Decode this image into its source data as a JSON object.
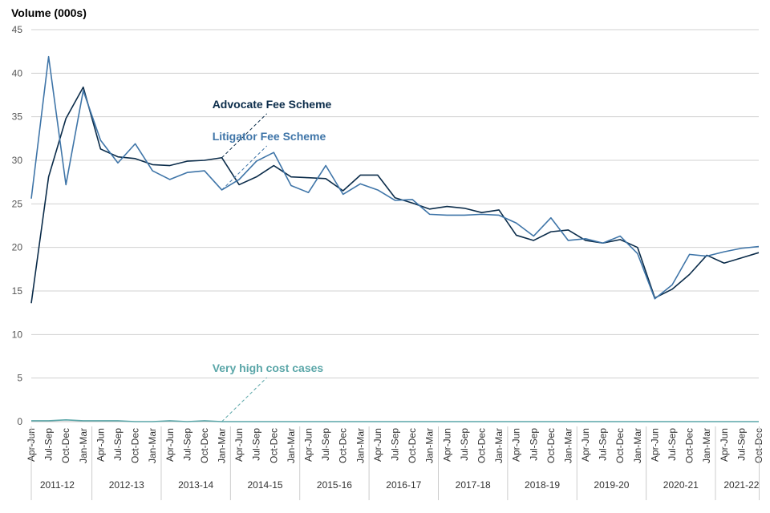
{
  "chart_data": {
    "type": "line",
    "ylabel": "Volume (000s)",
    "ylim": [
      0,
      45
    ],
    "yticks": [
      0,
      5,
      10,
      15,
      20,
      25,
      30,
      35,
      40,
      45
    ],
    "grid": true,
    "quarters": [
      "Apr-Jun",
      "Jul-Sep",
      "Oct-Dec",
      "Jan-Mar"
    ],
    "years": [
      "2011-12",
      "2012-13",
      "2013-14",
      "2014-15",
      "2015-16",
      "2016-17",
      "2017-18",
      "2018-19",
      "2019-20",
      "2020-21",
      "2021-22"
    ],
    "categories": [
      "Apr-Jun",
      "Jul-Sep",
      "Oct-Dec",
      "Jan-Mar",
      "Apr-Jun",
      "Jul-Sep",
      "Oct-Dec",
      "Jan-Mar",
      "Apr-Jun",
      "Jul-Sep",
      "Oct-Dec",
      "Jan-Mar",
      "Apr-Jun",
      "Jul-Sep",
      "Oct-Dec",
      "Jan-Mar",
      "Apr-Jun",
      "Jul-Sep",
      "Oct-Dec",
      "Jan-Mar",
      "Apr-Jun",
      "Jul-Sep",
      "Oct-Dec",
      "Jan-Mar",
      "Apr-Jun",
      "Jul-Sep",
      "Oct-Dec",
      "Jan-Mar",
      "Apr-Jun",
      "Jul-Sep",
      "Oct-Dec",
      "Jan-Mar",
      "Apr-Jun",
      "Jul-Sep",
      "Oct-Dec",
      "Jan-Mar",
      "Apr-Jun",
      "Jul-Sep",
      "Oct-Dec",
      "Jan-Mar",
      "Apr-Jun",
      "Jul-Sep",
      "Oct-Dec"
    ],
    "series": [
      {
        "name": "Advocate Fee Scheme",
        "color": "#0b2c4a",
        "values": [
          13.6,
          28.1,
          34.8,
          38.4,
          31.3,
          30.4,
          30.2,
          29.5,
          29.4,
          29.9,
          30.0,
          30.3,
          27.2,
          28.1,
          29.4,
          28.1,
          28.0,
          27.9,
          26.5,
          28.3,
          28.3,
          25.7,
          25.1,
          24.4,
          24.7,
          24.5,
          24.0,
          24.3,
          21.4,
          20.8,
          21.8,
          22.0,
          20.8,
          20.5,
          20.9,
          20.0,
          14.2,
          15.2,
          16.9,
          19.1,
          18.2,
          18.8,
          19.4
        ]
      },
      {
        "name": "Litigator Fee Scheme",
        "color": "#3f75a8",
        "values": [
          25.6,
          41.9,
          27.2,
          38.0,
          32.3,
          29.7,
          31.9,
          28.8,
          27.8,
          28.6,
          28.8,
          26.6,
          27.8,
          29.9,
          30.9,
          27.1,
          26.3,
          29.4,
          26.1,
          27.3,
          26.6,
          25.4,
          25.5,
          23.8,
          23.7,
          23.7,
          23.8,
          23.7,
          22.8,
          21.3,
          23.4,
          20.8,
          21.0,
          20.5,
          21.3,
          19.3,
          14.1,
          15.7,
          19.2,
          19.0,
          19.5,
          19.9,
          20.1
        ]
      },
      {
        "name": "Very high cost cases",
        "color": "#5aa6a8",
        "values": [
          0.1,
          0.1,
          0.2,
          0.1,
          0.1,
          0.1,
          0.0,
          0.0,
          0.1,
          0.0,
          0.1,
          0.0,
          0.0,
          0.0,
          0.0,
          0.0,
          0.0,
          0.0,
          0.0,
          0.0,
          0.0,
          0.0,
          0.0,
          0.0,
          0.0,
          0.0,
          0.0,
          0.0,
          0.0,
          0.0,
          0.0,
          0.0,
          0.0,
          0.0,
          0.0,
          0.0,
          0.0,
          0.0,
          0.0,
          0.0,
          0.0,
          0.0,
          0.0
        ]
      }
    ],
    "annotations": [
      {
        "label": "Advocate Fee Scheme",
        "series": 0,
        "point_index": 11,
        "value": 30.3,
        "label_value": 36.0,
        "label_index": 13.6
      },
      {
        "label": "Litigator Fee Scheme",
        "series": 1,
        "point_index": 11,
        "value": 26.6,
        "label_value": 32.3,
        "label_index": 13.6
      },
      {
        "label": "Very high cost cases",
        "series": 2,
        "point_index": 11,
        "value": 0.0,
        "label_value": 5.7,
        "label_index": 13.6
      }
    ]
  }
}
